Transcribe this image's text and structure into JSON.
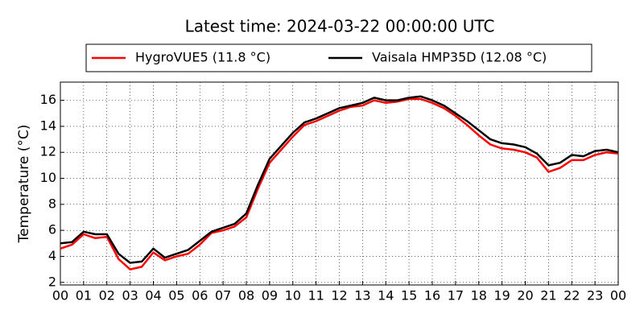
{
  "chart_data": {
    "type": "line",
    "title": "Latest time: 2024-03-22 00:00:00 UTC",
    "ylabel": "Temperature (°C)",
    "x": [
      0,
      0.5,
      1,
      1.5,
      2,
      2.5,
      3,
      3.5,
      4,
      4.5,
      5,
      5.5,
      6,
      6.5,
      7,
      7.5,
      8,
      8.5,
      9,
      9.5,
      10,
      10.5,
      11,
      11.5,
      12,
      12.5,
      13,
      13.5,
      14,
      14.5,
      15,
      15.5,
      16,
      16.5,
      17,
      17.5,
      18,
      18.5,
      19,
      19.5,
      20,
      20.5,
      21,
      21.5,
      22,
      22.5,
      23,
      23.5,
      24
    ],
    "series": [
      {
        "name": "HygroVUE5 (11.8 °C)",
        "color": "#ff0000",
        "values": [
          4.6,
          4.9,
          5.7,
          5.4,
          5.5,
          3.8,
          3.0,
          3.2,
          4.3,
          3.7,
          4.0,
          4.2,
          4.9,
          5.8,
          6.0,
          6.3,
          7.0,
          9.2,
          11.2,
          12.2,
          13.2,
          14.1,
          14.4,
          14.8,
          15.2,
          15.5,
          15.6,
          16.0,
          15.8,
          15.9,
          16.1,
          16.1,
          15.8,
          15.4,
          14.8,
          14.1,
          13.3,
          12.6,
          12.3,
          12.2,
          12.0,
          11.6,
          10.5,
          10.8,
          11.4,
          11.4,
          11.8,
          12.0,
          11.9
        ]
      },
      {
        "name": "Vaisala HMP35D (12.08 °C)",
        "color": "#000000",
        "values": [
          5.0,
          5.1,
          5.9,
          5.7,
          5.7,
          4.2,
          3.5,
          3.6,
          4.6,
          3.9,
          4.2,
          4.5,
          5.2,
          5.9,
          6.2,
          6.5,
          7.3,
          9.5,
          11.5,
          12.5,
          13.5,
          14.3,
          14.6,
          15.0,
          15.4,
          15.6,
          15.8,
          16.2,
          16.0,
          16.0,
          16.2,
          16.3,
          16.0,
          15.6,
          15.0,
          14.4,
          13.7,
          13.0,
          12.7,
          12.6,
          12.4,
          11.9,
          11.0,
          11.2,
          11.8,
          11.7,
          12.1,
          12.2,
          12.0
        ]
      }
    ],
    "xlim": [
      0,
      24
    ],
    "xticks": [
      {
        "value": 0,
        "label": "00"
      },
      {
        "value": 1,
        "label": "01"
      },
      {
        "value": 2,
        "label": "02"
      },
      {
        "value": 3,
        "label": "03"
      },
      {
        "value": 4,
        "label": "04"
      },
      {
        "value": 5,
        "label": "05"
      },
      {
        "value": 6,
        "label": "06"
      },
      {
        "value": 7,
        "label": "07"
      },
      {
        "value": 8,
        "label": "08"
      },
      {
        "value": 9,
        "label": "09"
      },
      {
        "value": 10,
        "label": "10"
      },
      {
        "value": 11,
        "label": "11"
      },
      {
        "value": 12,
        "label": "12"
      },
      {
        "value": 13,
        "label": "13"
      },
      {
        "value": 14,
        "label": "14"
      },
      {
        "value": 15,
        "label": "15"
      },
      {
        "value": 16,
        "label": "16"
      },
      {
        "value": 17,
        "label": "17"
      },
      {
        "value": 18,
        "label": "18"
      },
      {
        "value": 19,
        "label": "19"
      },
      {
        "value": 20,
        "label": "20"
      },
      {
        "value": 21,
        "label": "21"
      },
      {
        "value": 22,
        "label": "22"
      },
      {
        "value": 23,
        "label": "23"
      },
      {
        "value": 24,
        "label": "00"
      }
    ],
    "ylim": [
      1.8,
      17.4
    ],
    "yticks": [
      2,
      4,
      6,
      8,
      10,
      12,
      14,
      16
    ],
    "grid": true,
    "legend": "top"
  }
}
